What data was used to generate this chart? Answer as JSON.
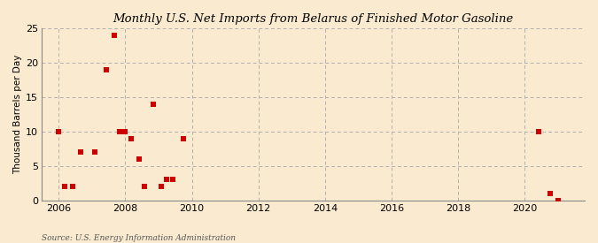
{
  "title": "Monthly U.S. Net Imports from Belarus of Finished Motor Gasoline",
  "ylabel": "Thousand Barrels per Day",
  "source": "Source: U.S. Energy Information Administration",
  "background_color": "#faebd0",
  "plot_background_color": "#faebd0",
  "marker_color": "#cc0000",
  "marker_size": 18,
  "xlim": [
    2005.5,
    2021.8
  ],
  "ylim": [
    0,
    25
  ],
  "yticks": [
    0,
    5,
    10,
    15,
    20,
    25
  ],
  "xticks": [
    2006,
    2008,
    2010,
    2012,
    2014,
    2016,
    2018,
    2020
  ],
  "x_data": [
    2006.0,
    2006.17,
    2006.42,
    2006.67,
    2007.08,
    2007.42,
    2007.67,
    2007.83,
    2008.0,
    2008.17,
    2008.42,
    2008.58,
    2008.83,
    2009.08,
    2009.25,
    2009.42,
    2009.75,
    2020.42,
    2020.75,
    2021.0
  ],
  "y_data": [
    10,
    2,
    2,
    7,
    7,
    19,
    24,
    10,
    10,
    9,
    6,
    2,
    14,
    2,
    3,
    3,
    9,
    10,
    1,
    0
  ]
}
